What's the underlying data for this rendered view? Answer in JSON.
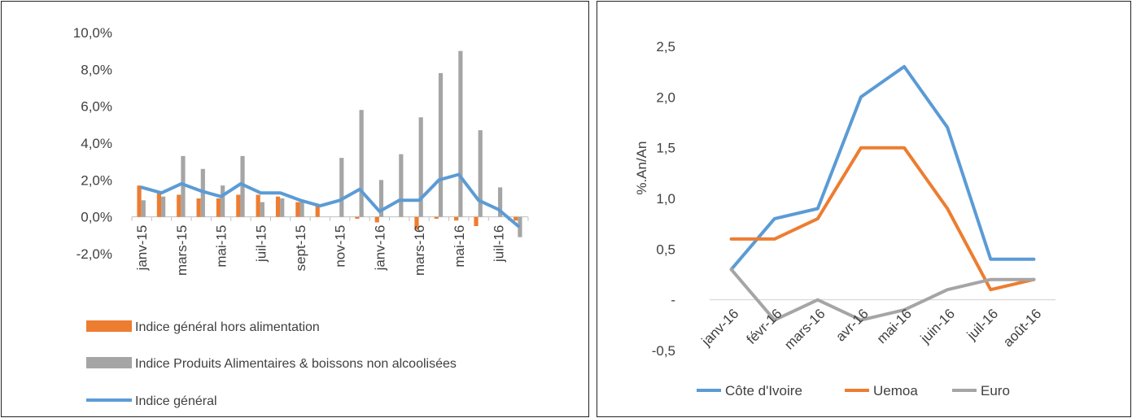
{
  "chart_data": [
    {
      "type": "bar",
      "subtype": "bar+line",
      "x": [
        "janv-15",
        "févr-15",
        "mars-15",
        "avr-15",
        "mai-15",
        "juin-15",
        "juil-15",
        "août-15",
        "sept-15",
        "oct-15",
        "nov-15",
        "déc-15",
        "janv-16",
        "févr-16",
        "mars-16",
        "avr-16",
        "mai-16",
        "juin-16",
        "juil-16",
        "août-16"
      ],
      "tick_labels": [
        "janv-15",
        "mars-15",
        "mai-15",
        "juil-15",
        "sept-15",
        "nov-15",
        "janv-16",
        "mars-16",
        "mai-16",
        "juil-16"
      ],
      "series": [
        {
          "name": "Indice général hors alimentation",
          "kind": "bar",
          "color": "#ED7D31",
          "values": [
            1.7,
            1.3,
            1.2,
            1.0,
            1.0,
            1.2,
            1.2,
            1.1,
            0.8,
            0.6,
            0.0,
            -0.1,
            -0.3,
            0.0,
            -0.7,
            -0.1,
            -0.2,
            -0.5,
            0.0,
            -0.2
          ]
        },
        {
          "name": "Indice Produits Alimentaires & boissons non alcoolisées",
          "kind": "bar",
          "color": "#A5A5A5",
          "values": [
            0.9,
            1.1,
            3.3,
            2.6,
            1.7,
            3.3,
            0.8,
            1.0,
            0.9,
            0.0,
            3.2,
            5.8,
            2.0,
            3.4,
            5.4,
            7.8,
            9.0,
            4.7,
            1.6,
            -1.1
          ]
        },
        {
          "name": "Indice général",
          "kind": "line",
          "color": "#5B9BD5",
          "values": [
            1.6,
            1.3,
            1.8,
            1.4,
            1.1,
            1.8,
            1.3,
            1.3,
            0.9,
            0.6,
            0.9,
            1.5,
            0.3,
            0.9,
            0.9,
            2.0,
            2.3,
            0.9,
            0.4,
            -0.5
          ]
        }
      ],
      "y_ticks": [
        "10,0%",
        "8,0%",
        "6,0%",
        "4,0%",
        "2,0%",
        "0,0%",
        "-2,0%"
      ],
      "ylim": [
        -2,
        10
      ],
      "grid": false,
      "legend_position": "bottom"
    },
    {
      "type": "line",
      "x": [
        "janv-16",
        "févr-16",
        "mars-16",
        "avr-16",
        "mai-16",
        "juin-16",
        "juil-16",
        "août-16"
      ],
      "series": [
        {
          "name": "Côte d'Ivoire",
          "color": "#5B9BD5",
          "values": [
            0.3,
            0.8,
            0.9,
            2.0,
            2.3,
            1.7,
            0.4,
            0.4
          ]
        },
        {
          "name": "Uemoa",
          "color": "#ED7D31",
          "values": [
            0.6,
            0.6,
            0.8,
            1.5,
            1.5,
            0.9,
            0.1,
            0.2
          ]
        },
        {
          "name": "Euro",
          "color": "#A5A5A5",
          "values": [
            0.3,
            -0.2,
            0.0,
            -0.2,
            -0.1,
            0.1,
            0.2,
            0.2
          ]
        }
      ],
      "ylabel": "%.An/An",
      "y_ticks": [
        "2,5",
        "2,0",
        "1,5",
        "1,0",
        "0,5",
        "-",
        "-0,5"
      ],
      "ylim": [
        -0.5,
        2.5
      ],
      "grid": false,
      "legend_position": "bottom"
    }
  ]
}
